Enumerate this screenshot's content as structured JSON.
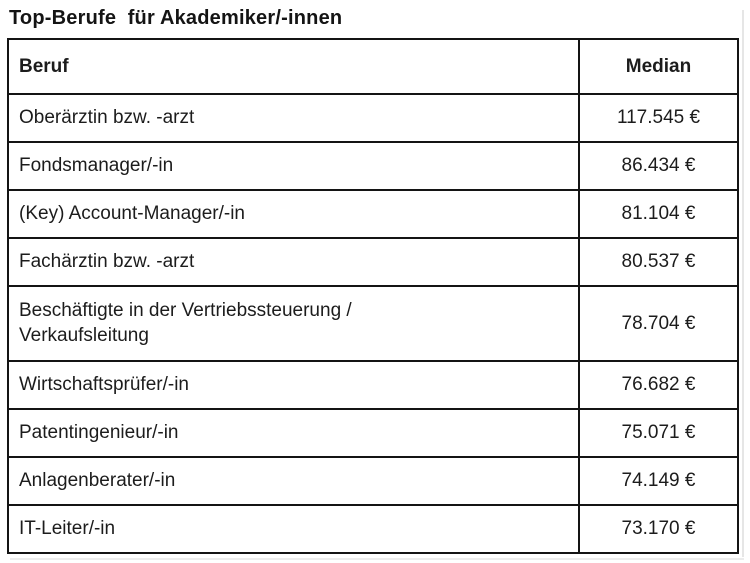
{
  "page": {
    "title": "Top-Berufe  für Akademiker/-innen"
  },
  "table": {
    "headers": {
      "beruf": "Beruf",
      "median": "Median"
    },
    "rows": [
      {
        "beruf": "Oberärztin bzw. -arzt",
        "median": "117.545 €"
      },
      {
        "beruf": "Fondsmanager/-in",
        "median": "86.434 €"
      },
      {
        "beruf": "(Key) Account-Manager/-in",
        "median": "81.104 €"
      },
      {
        "beruf": "Fachärztin bzw. -arzt",
        "median": "80.537 €"
      },
      {
        "beruf": "Beschäftigte in der Vertriebssteuerung /\nVerkaufsleitung",
        "median": "78.704 €"
      },
      {
        "beruf": "Wirtschaftsprüfer/-in",
        "median": "76.682 €"
      },
      {
        "beruf": "Patentingenieur/-in",
        "median": "75.071 €"
      },
      {
        "beruf": "Anlagenberater/-in",
        "median": "74.149 €"
      },
      {
        "beruf": "IT-Leiter/-in",
        "median": "73.170 €"
      }
    ]
  },
  "chart_data": {
    "type": "table",
    "title": "Top-Berufe für Akademiker/-innen",
    "columns": [
      "Beruf",
      "Median"
    ],
    "categories": [
      "Oberärztin bzw. -arzt",
      "Fondsmanager/-in",
      "(Key) Account-Manager/-in",
      "Fachärztin bzw. -arzt",
      "Beschäftigte in der Vertriebssteuerung / Verkaufsleitung",
      "Wirtschaftsprüfer/-in",
      "Patentingenieur/-in",
      "Anlagenberater/-in",
      "IT-Leiter/-in"
    ],
    "values": [
      117545,
      86434,
      81104,
      80537,
      78704,
      76682,
      75071,
      74149,
      73170
    ],
    "currency": "€",
    "number_format": "de-DE thousands separator '.'"
  },
  "colors": {
    "background": "#ffffff",
    "border": "#141414",
    "text": "#1c1c1c"
  }
}
